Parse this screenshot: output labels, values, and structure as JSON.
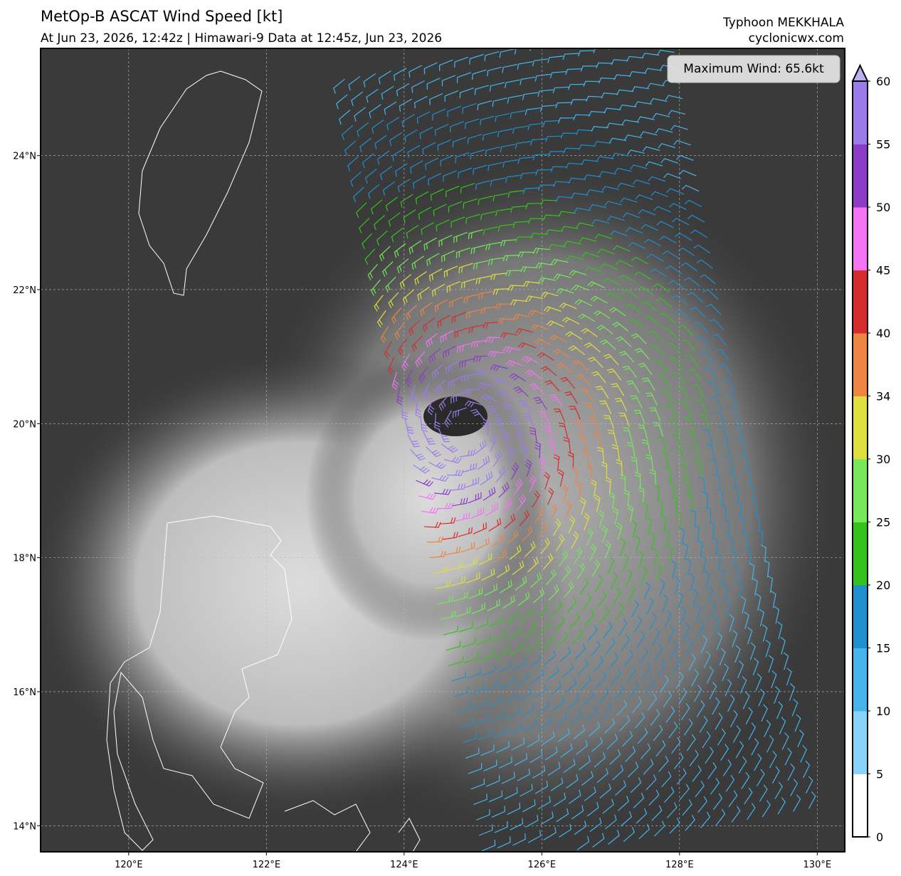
{
  "header": {
    "title": "MetOp-B ASCAT Wind Speed [kt]",
    "subtitle": "At Jun 23, 2026, 12:42z | Himawari-9 Data at 12:45z, Jun 23, 2026",
    "storm": "Typhoon MEKKHALA",
    "source": "cyclonicwx.com"
  },
  "map": {
    "annotation": "Maximum Wind: 65.6kt",
    "xlim": [
      118.72,
      130.4
    ],
    "ylim": [
      13.61,
      25.6
    ],
    "xticks": [
      {
        "value": 120,
        "label": "120°E"
      },
      {
        "value": 122,
        "label": "122°E"
      },
      {
        "value": 124,
        "label": "124°E"
      },
      {
        "value": 126,
        "label": "126°E"
      },
      {
        "value": 128,
        "label": "128°E"
      },
      {
        "value": 130,
        "label": "130°E"
      }
    ],
    "yticks": [
      {
        "value": 14,
        "label": "14°N"
      },
      {
        "value": 16,
        "label": "16°N"
      },
      {
        "value": 18,
        "label": "18°N"
      },
      {
        "value": 20,
        "label": "20°N"
      },
      {
        "value": 22,
        "label": "22°N"
      },
      {
        "value": 24,
        "label": "24°N"
      }
    ],
    "grid": true
  },
  "colorbar": {
    "ticks": [
      0,
      5,
      10,
      15,
      20,
      25,
      30,
      34,
      40,
      45,
      50,
      55,
      60
    ],
    "colors": [
      "#ffffff",
      "#87d3fa",
      "#45b4ea",
      "#1e90cf",
      "#33c41b",
      "#76e85a",
      "#dede40",
      "#ee8442",
      "#d62c2c",
      "#f472f4",
      "#8c3bc8",
      "#9b7bea"
    ],
    "extend_color": "#b9b0f0"
  }
}
